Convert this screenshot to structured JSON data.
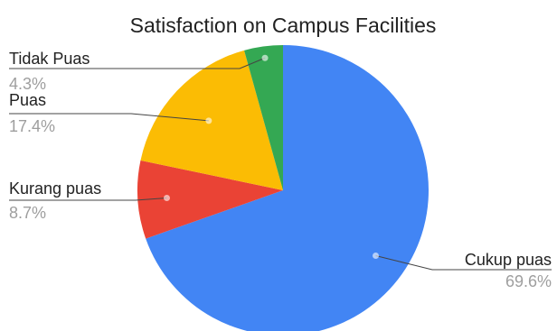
{
  "chart_data": {
    "type": "pie",
    "title": "Satisfaction on Campus Facilities",
    "slices": [
      {
        "label": "Cukup puas",
        "value": 69.6,
        "display": "69.6%",
        "color": "#4285f4"
      },
      {
        "label": "Kurang puas",
        "value": 8.7,
        "display": "8.7%",
        "color": "#ea4335"
      },
      {
        "label": "Puas",
        "value": 17.4,
        "display": "17.4%",
        "color": "#fbbc04"
      },
      {
        "label": "Tidak Puas",
        "value": 4.3,
        "display": "4.3%",
        "color": "#34a853"
      }
    ],
    "start_angle": "12 o'clock",
    "direction": "clockwise",
    "legend": "none",
    "labels": "outside with leader lines"
  }
}
